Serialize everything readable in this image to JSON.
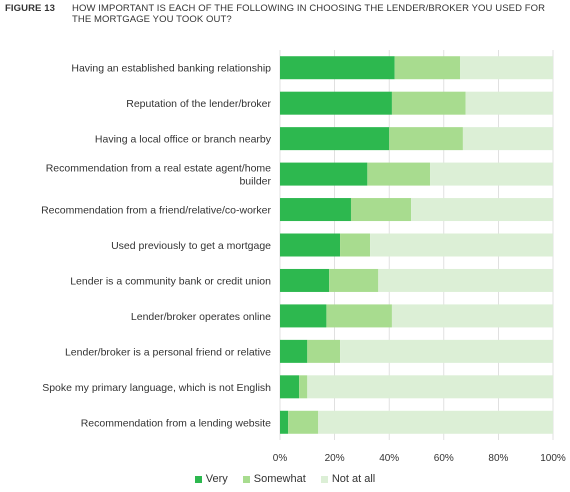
{
  "figure": {
    "number": "FIGURE 13",
    "title": "HOW IMPORTANT IS EACH OF THE FOLLOWING IN CHOOSING THE LENDER/BROKER YOU USED FOR THE MORTGAGE YOU TOOK OUT?"
  },
  "colors": {
    "very": "#2db84f",
    "somewhat": "#a8dc8f",
    "not_at_all": "#dcefd6"
  },
  "legend": [
    {
      "label": "Very",
      "color": "#2db84f"
    },
    {
      "label": "Somewhat",
      "color": "#a8dc8f"
    },
    {
      "label": "Not at all",
      "color": "#dcefd6"
    }
  ],
  "chart_data": {
    "type": "bar",
    "orientation": "horizontal",
    "stacked": true,
    "categories": [
      [
        "Having an established banking relationship"
      ],
      [
        "Reputation of the lender/broker"
      ],
      [
        "Having a local office or branch nearby"
      ],
      [
        "Recommendation from a real estate agent/home",
        "builder"
      ],
      [
        "Recommendation from a friend/relative/co-worker"
      ],
      [
        "Used previously to get a mortgage"
      ],
      [
        "Lender is a community bank or credit union"
      ],
      [
        "Lender/broker operates online"
      ],
      [
        "Lender/broker is a personal friend or relative"
      ],
      [
        "Spoke my primary language, which is not English"
      ],
      [
        "Recommendation from a lending website"
      ]
    ],
    "series": [
      {
        "name": "Very",
        "values": [
          42,
          41,
          40,
          32,
          26,
          22,
          18,
          17,
          10,
          7,
          3
        ]
      },
      {
        "name": "Somewhat",
        "values": [
          24,
          27,
          27,
          23,
          22,
          11,
          18,
          24,
          12,
          3,
          11
        ]
      },
      {
        "name": "Not at all",
        "values": [
          34,
          32,
          33,
          45,
          52,
          67,
          64,
          59,
          78,
          90,
          86
        ]
      }
    ],
    "xlim": [
      0,
      100
    ],
    "x_ticks": [
      "0%",
      "20%",
      "40%",
      "60%",
      "80%",
      "100%"
    ],
    "grid": true,
    "legend_position": "bottom"
  }
}
